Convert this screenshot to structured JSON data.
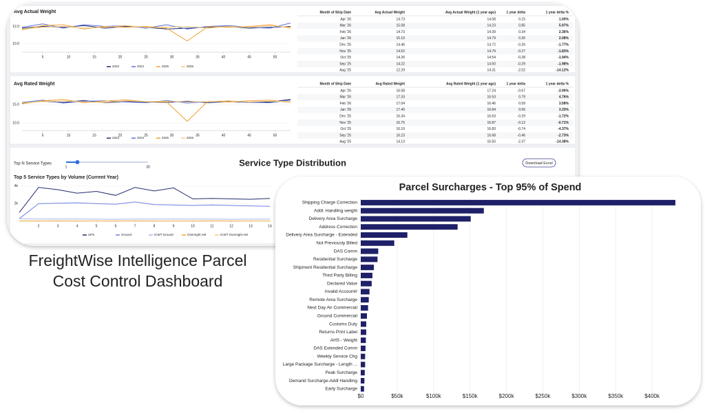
{
  "caption_lines": [
    "FreightWise Intelligence Parcel",
    "Cost Control Dashboard"
  ],
  "chart_data": [
    {
      "type": "line",
      "title": "Avg Actual Weight",
      "x": [
        1,
        5,
        9,
        13,
        17,
        21,
        25,
        29,
        33,
        37,
        41,
        45,
        49,
        53
      ],
      "xlim": [
        1,
        53
      ],
      "xticks": [
        5,
        10,
        15,
        20,
        25,
        30,
        35,
        40,
        45,
        50
      ],
      "ylim": [
        9,
        13
      ],
      "yticks": [
        {
          "value": 10,
          "label": "10.0"
        },
        {
          "value": 12,
          "label": "12.0"
        }
      ],
      "series": [
        {
          "name": "2023",
          "color": "#1f2a6b",
          "values": [
            11.8,
            12.0,
            11.9,
            12.1,
            11.8,
            12.0,
            11.9,
            11.7,
            11.8,
            11.9,
            12.0,
            11.8,
            11.9,
            12.0
          ]
        },
        {
          "name": "2024",
          "color": "#5b6fd6",
          "values": [
            11.9,
            12.3,
            11.8,
            12.2,
            12.0,
            12.1,
            11.8,
            12.2,
            11.7,
            12.0,
            12.1,
            11.9,
            11.8,
            12.4
          ]
        },
        {
          "name": "2025",
          "color": "#f0a030",
          "values": [
            11.6,
            12.1,
            12.2,
            11.7,
            12.0,
            11.9,
            12.0,
            11.8,
            10.3,
            12.0,
            11.9,
            12.0,
            12.2,
            11.8
          ]
        },
        {
          "name": "2026",
          "color": "#f7c978",
          "values": [
            11.7,
            11.9,
            12.0,
            11.8,
            11.9,
            12.1,
            11.9,
            11.9,
            12.0,
            11.8,
            12.0,
            11.9,
            12.1,
            11.9
          ]
        }
      ]
    },
    {
      "type": "line",
      "title": "Avg Rated Weight",
      "x": [
        1,
        5,
        9,
        13,
        17,
        21,
        25,
        29,
        33,
        37,
        41,
        45,
        49,
        53
      ],
      "xlim": [
        1,
        53
      ],
      "xticks": [
        5,
        10,
        15,
        20,
        25,
        30,
        35,
        40,
        45,
        50
      ],
      "ylim": [
        8,
        18
      ],
      "yticks": [
        {
          "value": 10,
          "label": "10.0"
        },
        {
          "value": 15,
          "label": "15.0"
        }
      ],
      "series": [
        {
          "name": "2023",
          "color": "#1f2a6b",
          "values": [
            15.4,
            15.9,
            15.6,
            16.1,
            15.5,
            15.8,
            15.7,
            15.6,
            15.9,
            15.5,
            15.8,
            15.6,
            15.7,
            16.4
          ]
        },
        {
          "name": "2024",
          "color": "#5b6fd6",
          "values": [
            15.6,
            16.2,
            15.4,
            15.9,
            16.0,
            15.7,
            15.5,
            16.1,
            15.4,
            15.8,
            16.0,
            15.6,
            15.5,
            16.2
          ]
        },
        {
          "name": "2025",
          "color": "#f0a030",
          "values": [
            15.2,
            16.0,
            16.4,
            15.5,
            15.9,
            16.3,
            15.8,
            15.7,
            10.5,
            15.9,
            15.7,
            16.0,
            16.2,
            15.6
          ]
        },
        {
          "name": "2026",
          "color": "#f7c978",
          "values": [
            15.5,
            15.8,
            16.0,
            15.7,
            15.6,
            16.0,
            15.8,
            15.9,
            15.7,
            15.8,
            16.0,
            15.7,
            15.9,
            15.8
          ]
        }
      ]
    },
    {
      "type": "line",
      "heading": "Service Type Distribution",
      "title": "Top 5 Service Types by Volume (Current Year)",
      "button": "Download Excel",
      "slider": {
        "label": "Top N Service Types",
        "min": 1,
        "max": 30,
        "value": 5
      },
      "x": [
        1,
        2,
        3,
        4,
        5,
        6,
        7,
        8,
        9,
        10,
        11,
        12,
        13,
        14
      ],
      "xlim": [
        1,
        14
      ],
      "xticks": [
        2,
        3,
        4,
        5,
        6,
        7,
        8,
        9,
        10,
        11,
        12,
        13,
        14
      ],
      "ylim": [
        0,
        4300
      ],
      "yticks": [
        {
          "value": 2000,
          "label": "2k"
        },
        {
          "value": 4000,
          "label": "4k"
        }
      ],
      "series": [
        {
          "name": "UPS",
          "color": "#1f2a6b",
          "values": [
            1000,
            3850,
            3600,
            3200,
            3400,
            2950,
            3850,
            3450,
            3800,
            2550,
            2600,
            2550,
            2500,
            2600
          ]
        },
        {
          "name": "Ground",
          "color": "#6b7fe0",
          "values": [
            300,
            2000,
            2050,
            2100,
            2000,
            1950,
            2200,
            1900,
            1850,
            1800,
            1850,
            1800,
            1750,
            1700
          ]
        },
        {
          "name": "ICWT Ground",
          "color": "#a9b4ee",
          "values": [
            300,
            250,
            260,
            250,
            240,
            230,
            250,
            240,
            250,
            240,
            250,
            230,
            240,
            250
          ]
        },
        {
          "name": "Overnight AM",
          "color": "#f0a030",
          "values": [
            60,
            50,
            55,
            50,
            45,
            50,
            55,
            50,
            45,
            50,
            55,
            50,
            45,
            50
          ]
        },
        {
          "name": "ICWT Overnight AM",
          "color": "#f7c978",
          "values": [
            30,
            25,
            30,
            25,
            30,
            25,
            30,
            25,
            30,
            25,
            30,
            25,
            30,
            25
          ]
        }
      ]
    },
    {
      "type": "hbar",
      "title": "Parcel Surcharges - Top 95% of Spend",
      "color": "#1f2068",
      "categories": [
        "Shipping Charge Correction",
        "Addl. Handling weight",
        "Delivery Area Surcharge",
        "Address Correction",
        "Delivery Area Surcharge - Extended",
        "Not Previously Billed",
        "DAS Comm",
        "Residential Surcharge",
        "Shipment Residential Surcharge",
        "Third Party Billing",
        "Declared Value",
        "Invalid Account#",
        "Remote Area Surcharge",
        "Next Day Air Commercial",
        "Ground Commercial",
        "Customs Duty",
        "Returns Print Label",
        "AHS - Weight",
        "DAS Extended Comm",
        "Weekly Service Chg",
        "Large Package Surcharge - Length ...",
        "Peak Surcharge",
        "Demand Surcharge-Addl Handling",
        "Early Surcharge"
      ],
      "values": [
        432000,
        169000,
        151000,
        133000,
        64000,
        46000,
        24000,
        23000,
        18000,
        16000,
        15000,
        12000,
        11000,
        10000,
        8500,
        7500,
        7500,
        7000,
        6500,
        6000,
        6000,
        5500,
        5000,
        4500
      ],
      "xlim": [
        0,
        450000
      ],
      "xticks": [
        {
          "value": 0,
          "label": "$0"
        },
        {
          "value": 50000,
          "label": "$50k"
        },
        {
          "value": 100000,
          "label": "$100k"
        },
        {
          "value": 150000,
          "label": "$150k"
        },
        {
          "value": 200000,
          "label": "$200k"
        },
        {
          "value": 250000,
          "label": "$250k"
        },
        {
          "value": 300000,
          "label": "$300k"
        },
        {
          "value": 350000,
          "label": "$350k"
        },
        {
          "value": 400000,
          "label": "$400k"
        }
      ],
      "grid": true
    }
  ],
  "tables": [
    {
      "header": [
        "Month of Ship Date",
        "Avg Actual Weight",
        "Avg Actual Weight (1 year ago)",
        "1 year delta",
        "1 year delta %"
      ],
      "rows": [
        [
          "Apr '26",
          "14.73",
          "14.58",
          "0.15",
          "1.00%"
        ],
        [
          "Mar '26",
          "15.08",
          "14.23",
          "0.85",
          "5.97%"
        ],
        [
          "Feb '26",
          "14.73",
          "14.39",
          "0.34",
          "2.36%"
        ],
        [
          "Jan '26",
          "15.10",
          "14.79",
          "0.30",
          "2.08%"
        ],
        [
          "Dec '25",
          "14.46",
          "14.72",
          "-0.26",
          "-1.77%"
        ],
        [
          "Nov '25",
          "14.52",
          "14.79",
          "-0.27",
          "-1.83%"
        ],
        [
          "Oct '25",
          "14.26",
          "14.54",
          "-0.28",
          "-1.94%"
        ],
        [
          "Sep '25",
          "14.22",
          "14.50",
          "-0.29",
          "-1.98%"
        ],
        [
          "Aug '25",
          "12.29",
          "14.31",
          "-2.02",
          "-14.12%"
        ]
      ]
    },
    {
      "header": [
        "Month of Ship Date",
        "Avg Rated Weight",
        "Avg Rated Weight (1 year ago)",
        "1 year delta",
        "1 year delta %"
      ],
      "rows": [
        [
          "Apr '26",
          "16.58",
          "17.24",
          "-0.67",
          "-3.90%"
        ],
        [
          "Mar '26",
          "17.33",
          "16.53",
          "0.79",
          "4.76%"
        ],
        [
          "Feb '26",
          "17.04",
          "16.46",
          "0.59",
          "3.58%"
        ],
        [
          "Jan '26",
          "17.40",
          "16.84",
          "0.56",
          "3.33%"
        ],
        [
          "Dec '25",
          "16.34",
          "16.63",
          "-0.29",
          "-1.72%"
        ],
        [
          "Nov '25",
          "16.75",
          "16.87",
          "-0.12",
          "-0.71%"
        ],
        [
          "Oct '25",
          "16.10",
          "16.83",
          "-0.74",
          "-4.37%"
        ],
        [
          "Sep '25",
          "16.23",
          "16.68",
          "-0.46",
          "-2.73%"
        ],
        [
          "Aug '25",
          "14.13",
          "16.50",
          "-2.37",
          "-14.38%"
        ]
      ]
    }
  ]
}
